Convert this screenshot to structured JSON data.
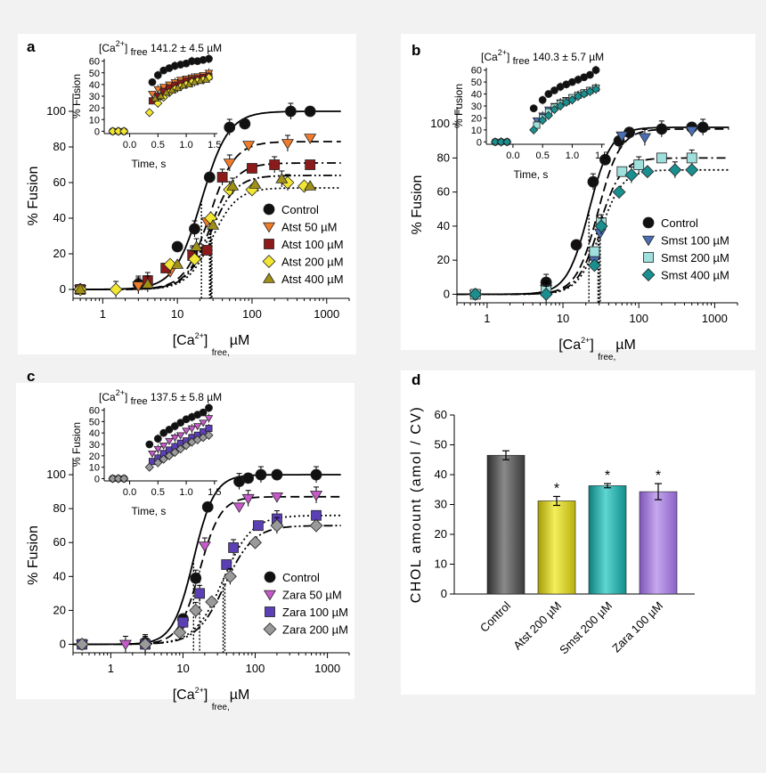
{
  "colors": {
    "control": "#111111",
    "atst50": "#f07c2a",
    "atst100": "#8c1a1a",
    "atst200": "#f2e632",
    "atst400": "#a09018",
    "smst100": "#4a6fb5",
    "smst200": "#9fe0dc",
    "smst400": "#1a8f8f",
    "zara50": "#c65ac9",
    "zara100": "#5b3fb5",
    "zara200": "#9a9a9a",
    "barControl": "#555555",
    "barAtst": "#d8d21e",
    "barSmst": "#1bb3b0",
    "barZara": "#a17bd6"
  },
  "panels": {
    "a": {
      "label": "a"
    },
    "b": {
      "label": "b"
    },
    "c": {
      "label": "c"
    },
    "d": {
      "label": "d"
    }
  },
  "chart_data": [
    {
      "panel": "a",
      "type": "scatter",
      "x_scale": "log",
      "xlabel_main": "[Ca",
      "xlabel_sup": "2+",
      "xlabel_sub": "free,",
      "xlabel_unit": "µM",
      "ylabel": "% Fusion",
      "xlim": [
        0.4,
        2000
      ],
      "ylim": [
        -5,
        110
      ],
      "xticks": [
        "1",
        "10",
        "100",
        "1000"
      ],
      "yticks": [
        "0",
        "20",
        "40",
        "60",
        "80",
        "100"
      ],
      "inset": {
        "title_main": "[Ca",
        "title_sup": "2+",
        "title_end": "]",
        "title_sub": "free",
        "title_value": "141.2 ± 4.5  µM",
        "xlabel": "Time, s",
        "ylabel": "% Fusion",
        "xticks": [
          "0.0",
          "0.5",
          "1.0",
          "1.5"
        ],
        "yticks": [
          "0",
          "10",
          "20",
          "30",
          "40",
          "50",
          "60"
        ]
      },
      "series": [
        {
          "name": "Control",
          "marker": "circle",
          "color": "control",
          "line": "solid",
          "max": 100,
          "ec50": 21,
          "hill": 2.4,
          "x": [
            0.5,
            3,
            10,
            17,
            27,
            50,
            80,
            330,
            600
          ],
          "y": [
            0,
            3,
            24,
            34,
            63,
            91,
            93,
            100,
            100
          ]
        },
        {
          "name": "Atst 50 µM",
          "marker": "tri-down",
          "color": "atst50",
          "line": "dash",
          "max": 83,
          "ec50": 27,
          "hill": 2.6,
          "x": [
            0.5,
            3,
            8,
            16,
            25,
            50,
            90,
            300,
            600
          ],
          "y": [
            0,
            2,
            10,
            20,
            38,
            71,
            81,
            82,
            85
          ]
        },
        {
          "name": "Atst 100 µM",
          "marker": "square",
          "color": "atst100",
          "line": "dashdot",
          "max": 71,
          "ec50": 28,
          "hill": 2.6,
          "x": [
            0.5,
            4,
            7,
            16,
            25,
            40,
            100,
            200,
            600
          ],
          "y": [
            0,
            5,
            12,
            19,
            22,
            63,
            68,
            70,
            70
          ]
        },
        {
          "name": "Atst 200 µM",
          "marker": "diamond",
          "color": "atst200",
          "line": "dot",
          "max": 57,
          "ec50": 29,
          "hill": 2.6,
          "x": [
            0.5,
            1.5,
            8,
            17,
            28,
            50,
            100,
            300,
            500
          ],
          "y": [
            0,
            0,
            14,
            17,
            40,
            56,
            56,
            60,
            58
          ]
        },
        {
          "name": "Atst 400 µM",
          "marker": "tri-up",
          "color": "atst400",
          "line": "dashdotdot",
          "max": 64,
          "ec50": 28,
          "hill": 2.6,
          "x": [
            0.5,
            4,
            10,
            18,
            30,
            55,
            110,
            250,
            600
          ],
          "y": [
            0,
            3,
            14,
            24,
            36,
            58,
            59,
            62,
            58
          ]
        }
      ],
      "inset_series": [
        {
          "name": "Control",
          "marker": "circle",
          "color": "control",
          "t": [
            -0.3,
            -0.2,
            -0.1,
            0.4,
            0.5,
            0.6,
            0.7,
            0.8,
            0.9,
            1.0,
            1.1,
            1.2,
            1.3,
            1.4
          ],
          "y": [
            0,
            0,
            0,
            42,
            48,
            52,
            54,
            56,
            57,
            58,
            60,
            60,
            61,
            62
          ]
        },
        {
          "name": "Atst 50 µM",
          "marker": "tri-down",
          "color": "atst50",
          "t": [
            0.4,
            0.5,
            0.6,
            0.7,
            0.8,
            0.9,
            1.0,
            1.1,
            1.2,
            1.3,
            1.4
          ],
          "y": [
            32,
            36,
            38,
            40,
            42,
            44,
            45,
            46,
            47,
            48,
            50
          ]
        },
        {
          "name": "Atst 100 µM",
          "marker": "square",
          "color": "atst100",
          "t": [
            0.4,
            0.5,
            0.6,
            0.7,
            0.8,
            0.9,
            1.0,
            1.1,
            1.2,
            1.3,
            1.4
          ],
          "y": [
            26,
            30,
            34,
            37,
            39,
            41,
            43,
            44,
            45,
            46,
            47
          ]
        },
        {
          "name": "Atst 200 µM",
          "marker": "diamond",
          "color": "atst200",
          "t": [
            -0.3,
            -0.2,
            -0.1,
            0.35,
            0.5,
            0.6,
            0.7,
            0.8,
            0.9,
            1.0,
            1.1,
            1.2,
            1.3,
            1.4
          ],
          "y": [
            0,
            0,
            0,
            16,
            24,
            29,
            33,
            36,
            38,
            40,
            42,
            43,
            44,
            46
          ]
        },
        {
          "name": "Atst 400 µM",
          "marker": "tri-up",
          "color": "atst400",
          "t": [
            0.45,
            0.55,
            0.65,
            0.75,
            0.85,
            0.95,
            1.05,
            1.15,
            1.25,
            1.35
          ],
          "y": [
            28,
            30,
            33,
            35,
            37,
            39,
            40,
            42,
            43,
            44
          ]
        }
      ]
    },
    {
      "panel": "b",
      "type": "scatter",
      "x_scale": "log",
      "xlabel_main": "[Ca",
      "xlabel_sup": "2+",
      "xlabel_sub": "free,",
      "xlabel_unit": "µM",
      "ylabel": "% Fusion",
      "xlim": [
        0.4,
        2000
      ],
      "ylim": [
        -5,
        110
      ],
      "xticks": [
        "1",
        "10",
        "100",
        "1000"
      ],
      "yticks": [
        "0",
        "20",
        "40",
        "60",
        "80",
        "100"
      ],
      "inset": {
        "title_main": "[Ca",
        "title_sup": "2+",
        "title_end": "]",
        "title_sub": "free",
        "title_value": "140.3 ± 5.7  µM",
        "xlabel": "Time, s",
        "ylabel": "% Fusion",
        "xticks": [
          "0.0",
          "0.5",
          "1.0",
          "1.5"
        ],
        "yticks": [
          "0",
          "10",
          "20",
          "30",
          "40",
          "50",
          "60"
        ]
      },
      "series": [
        {
          "name": "Control",
          "marker": "circle",
          "color": "control",
          "line": "solid",
          "max": 98,
          "ec50": 22,
          "hill": 3.0,
          "x": [
            0.7,
            6,
            15,
            25,
            36,
            55,
            75,
            200,
            500,
            700
          ],
          "y": [
            0,
            7,
            29,
            66,
            79,
            90,
            95,
            97,
            98,
            98
          ]
        },
        {
          "name": "Smst 100 µM",
          "marker": "tri-down",
          "color": "smst100",
          "line": "dash",
          "max": 97,
          "ec50": 29,
          "hill": 3.0,
          "x": [
            0.7,
            6,
            26,
            31,
            60,
            120,
            500
          ],
          "y": [
            0,
            3,
            20,
            36,
            93,
            92,
            96
          ]
        },
        {
          "name": "Smst 200 µM",
          "marker": "square",
          "color": "smst200",
          "line": "dashdot",
          "max": 80,
          "ec50": 30,
          "hill": 3.0,
          "x": [
            0.7,
            6,
            26,
            32,
            60,
            100,
            200,
            500
          ],
          "y": [
            0,
            2,
            25,
            42,
            72,
            76,
            80,
            80
          ]
        },
        {
          "name": "Smst 400 µM",
          "marker": "diamond",
          "color": "smst400",
          "line": "dot",
          "max": 73,
          "ec50": 31,
          "hill": 3.0,
          "x": [
            0.7,
            6,
            26,
            32,
            55,
            80,
            130,
            300,
            500
          ],
          "y": [
            0,
            0,
            17,
            40,
            60,
            70,
            72,
            73,
            73
          ]
        }
      ],
      "inset_series": [
        {
          "name": "Control",
          "marker": "circle",
          "color": "control",
          "t": [
            -0.3,
            -0.2,
            -0.1,
            0.35,
            0.5,
            0.6,
            0.7,
            0.8,
            0.9,
            1.0,
            1.1,
            1.2,
            1.3,
            1.4
          ],
          "y": [
            0,
            0,
            0,
            28,
            35,
            40,
            43,
            46,
            48,
            50,
            52,
            54,
            56,
            60
          ]
        },
        {
          "name": "Smst 100 µM",
          "marker": "tri-down",
          "color": "smst100",
          "t": [
            0.4,
            0.5,
            0.6,
            0.7,
            0.8,
            0.9,
            1.0,
            1.1,
            1.2,
            1.3,
            1.4
          ],
          "y": [
            18,
            22,
            27,
            30,
            33,
            35,
            37,
            39,
            41,
            43,
            45
          ]
        },
        {
          "name": "Smst 200 µM",
          "marker": "square",
          "color": "smst200",
          "t": [
            0.4,
            0.5,
            0.6,
            0.7,
            0.8,
            0.9,
            1.0,
            1.1,
            1.2,
            1.3,
            1.4
          ],
          "y": [
            14,
            20,
            25,
            29,
            32,
            34,
            37,
            39,
            41,
            43,
            45
          ]
        },
        {
          "name": "Smst 400 µM",
          "marker": "diamond",
          "color": "smst400",
          "t": [
            -0.3,
            -0.2,
            -0.1,
            0.35,
            0.5,
            0.6,
            0.7,
            0.8,
            0.9,
            1.0,
            1.1,
            1.2,
            1.3,
            1.4
          ],
          "y": [
            0,
            0,
            0,
            10,
            18,
            22,
            27,
            30,
            33,
            35,
            38,
            40,
            42,
            44
          ]
        }
      ]
    },
    {
      "panel": "c",
      "type": "scatter",
      "x_scale": "log",
      "xlabel_main": "[Ca",
      "xlabel_sup": "2+",
      "xlabel_sub": "free,",
      "xlabel_unit": "µM",
      "ylabel": "% Fusion",
      "xlim": [
        0.3,
        2000
      ],
      "ylim": [
        -5,
        110
      ],
      "xticks": [
        "1",
        "10",
        "100",
        "1000"
      ],
      "yticks": [
        "0",
        "20",
        "40",
        "60",
        "80",
        "100"
      ],
      "inset": {
        "title_main": "[Ca",
        "title_sup": "2+",
        "title_end": "]",
        "title_sub": "free",
        "title_value": "137.5 ± 5.8  µM",
        "xlabel": "Time, s",
        "ylabel": "% Fusion",
        "xticks": [
          "0.0",
          "0.5",
          "1.0",
          "1.5"
        ],
        "yticks": [
          "0",
          "10",
          "20",
          "30",
          "40",
          "50",
          "60"
        ]
      },
      "series": [
        {
          "name": "Control",
          "marker": "circle",
          "color": "control",
          "line": "solid",
          "max": 100,
          "ec50": 14,
          "hill": 3.0,
          "x": [
            0.4,
            3,
            10,
            15,
            22,
            60,
            80,
            120,
            200,
            700
          ],
          "y": [
            0,
            1,
            15,
            39,
            81,
            96,
            98,
            100,
            100,
            100
          ]
        },
        {
          "name": "Zara 50 µM",
          "marker": "tri-down",
          "color": "zara50",
          "line": "dash",
          "max": 87,
          "ec50": 17,
          "hill": 3.0,
          "x": [
            0.4,
            1.6,
            10,
            20,
            60,
            80,
            200,
            700
          ],
          "y": [
            0,
            0,
            12,
            58,
            81,
            86,
            87,
            88
          ]
        },
        {
          "name": "Zara 100 µM",
          "marker": "square",
          "color": "zara100",
          "line": "dot",
          "max": 76,
          "ec50": 36,
          "hill": 2.2,
          "x": [
            0.4,
            3,
            10,
            17,
            40,
            50,
            110,
            200,
            700
          ],
          "y": [
            0,
            0,
            13,
            30,
            47,
            57,
            70,
            74,
            76
          ]
        },
        {
          "name": "Zara 200 µM",
          "marker": "diamond",
          "color": "zara200",
          "line": "dashdotdot",
          "max": 70,
          "ec50": 38,
          "hill": 2.2,
          "x": [
            0.4,
            3,
            9,
            15,
            25,
            45,
            100,
            200,
            700
          ],
          "y": [
            0,
            0,
            7,
            20,
            25,
            40,
            60,
            70,
            70
          ]
        }
      ],
      "inset_series": [
        {
          "name": "Control",
          "marker": "circle",
          "color": "control",
          "t": [
            -0.3,
            -0.2,
            -0.1,
            0.35,
            0.5,
            0.6,
            0.7,
            0.8,
            0.9,
            1.0,
            1.1,
            1.2,
            1.3,
            1.4
          ],
          "y": [
            0,
            0,
            0,
            30,
            35,
            40,
            43,
            46,
            49,
            52,
            54,
            56,
            58,
            62
          ]
        },
        {
          "name": "Zara 50 µM",
          "marker": "tri-down",
          "color": "zara50",
          "t": [
            0.4,
            0.5,
            0.6,
            0.7,
            0.8,
            0.9,
            1.0,
            1.1,
            1.2,
            1.3,
            1.4
          ],
          "y": [
            22,
            26,
            29,
            33,
            36,
            38,
            42,
            44,
            46,
            49,
            53
          ]
        },
        {
          "name": "Zara 100 µM",
          "marker": "square",
          "color": "zara100",
          "t": [
            0.4,
            0.5,
            0.6,
            0.7,
            0.8,
            0.9,
            1.0,
            1.1,
            1.2,
            1.3,
            1.4
          ],
          "y": [
            15,
            18,
            22,
            25,
            28,
            31,
            33,
            36,
            38,
            41,
            44
          ]
        },
        {
          "name": "Zara 200 µM",
          "marker": "diamond",
          "color": "zara200",
          "t": [
            -0.3,
            -0.2,
            -0.1,
            0.35,
            0.5,
            0.6,
            0.7,
            0.8,
            0.9,
            1.0,
            1.1,
            1.2,
            1.3,
            1.4
          ],
          "y": [
            0,
            0,
            0,
            10,
            14,
            17,
            20,
            23,
            26,
            29,
            32,
            34,
            36,
            38
          ]
        }
      ]
    },
    {
      "panel": "d",
      "type": "bar",
      "ylabel": "CHOL amount (amol / CV)",
      "ylim": [
        0,
        60
      ],
      "yticks": [
        "0",
        "10",
        "20",
        "30",
        "40",
        "50",
        "60"
      ],
      "categories": [
        "Control",
        "Atst  200 µM",
        "Smst  200 µM",
        "Zara  100 µM"
      ],
      "values": [
        46.5,
        31.2,
        36.3,
        34.3
      ],
      "errors": [
        1.5,
        1.5,
        0.7,
        2.7
      ],
      "significance": [
        "",
        "*",
        "*",
        "*"
      ],
      "bar_colors": [
        "barControl",
        "barAtst",
        "barSmst",
        "barZara"
      ]
    }
  ]
}
